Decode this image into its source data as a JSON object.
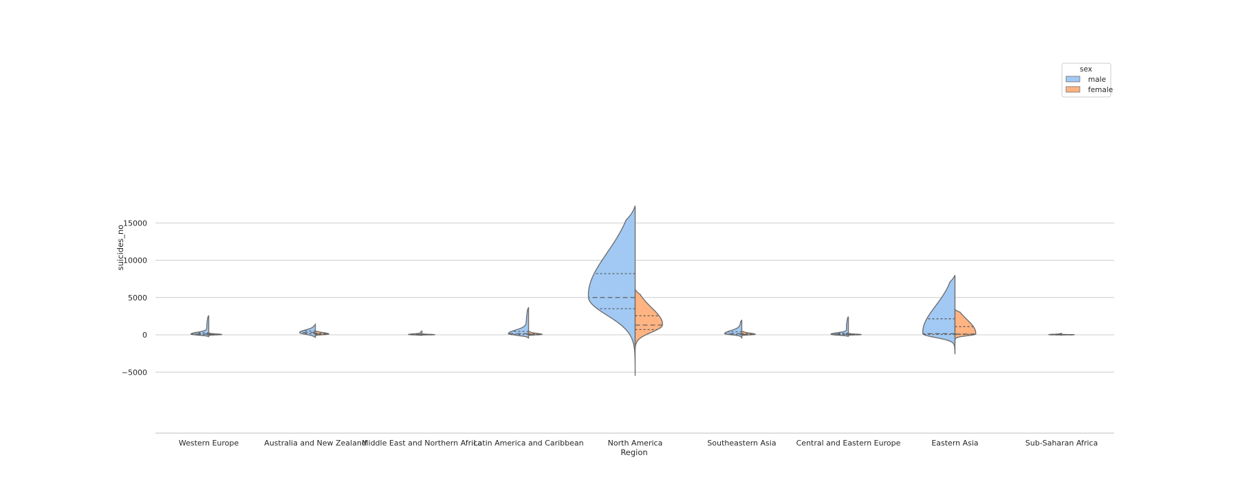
{
  "chart_data": {
    "type": "violin",
    "title": "",
    "xlabel": "Region",
    "ylabel": "suicides_no",
    "ylim": [
      -6500,
      17500
    ],
    "yticks": [
      -5000,
      0,
      5000,
      10000,
      15000
    ],
    "ytick_labels": [
      "−5000",
      "0",
      "5000",
      "10000",
      "15000"
    ],
    "grid": true,
    "split": true,
    "inner": "quartile",
    "categories": [
      "Western Europe",
      "Australia and New Zealand",
      "Middle East and Northern Africa",
      "Latin America and Caribbean",
      "North America",
      "Southeastern Asia",
      "Central and Eastern Europe",
      "Eastern Asia",
      "Sub-Saharan Africa"
    ],
    "legend": {
      "title": "sex",
      "position": "upper-right"
    },
    "series": [
      {
        "name": "male",
        "color": "#a1c9f4",
        "violins": [
          {
            "min": -300,
            "max": 2600,
            "q1": 20,
            "median": 100,
            "q3": 250
          },
          {
            "min": -400,
            "max": 1400,
            "q1": 150,
            "median": 300,
            "q3": 500
          },
          {
            "min": -100,
            "max": 500,
            "q1": 10,
            "median": 40,
            "q3": 90
          },
          {
            "min": -500,
            "max": 3700,
            "q1": 50,
            "median": 150,
            "q3": 450
          },
          {
            "min": -5500,
            "max": 17300,
            "q1": 3500,
            "median": 5000,
            "q3": 8200
          },
          {
            "min": -500,
            "max": 2000,
            "q1": 60,
            "median": 150,
            "q3": 400
          },
          {
            "min": -250,
            "max": 2450,
            "q1": 20,
            "median": 80,
            "q3": 200
          },
          {
            "min": -2600,
            "max": 8000,
            "q1": 50,
            "median": 150,
            "q3": 2150
          },
          {
            "min": -50,
            "max": 200,
            "q1": 5,
            "median": 20,
            "q3": 50
          }
        ]
      },
      {
        "name": "female",
        "color": "#ffb482",
        "violins": [
          {
            "min": -100,
            "max": 250,
            "q1": 10,
            "median": 40,
            "q3": 80
          },
          {
            "min": -100,
            "max": 500,
            "q1": 50,
            "median": 100,
            "q3": 200
          },
          {
            "min": -30,
            "max": 120,
            "q1": 5,
            "median": 15,
            "q3": 40
          },
          {
            "min": -100,
            "max": 500,
            "q1": 15,
            "median": 50,
            "q3": 130
          },
          {
            "min": -1900,
            "max": 6100,
            "q1": 700,
            "median": 1300,
            "q3": 2550
          },
          {
            "min": -100,
            "max": 500,
            "q1": 20,
            "median": 60,
            "q3": 150
          },
          {
            "min": -60,
            "max": 200,
            "q1": 5,
            "median": 25,
            "q3": 60
          },
          {
            "min": -1100,
            "max": 3400,
            "q1": 50,
            "median": 100,
            "q3": 1100
          },
          {
            "min": -20,
            "max": 60,
            "q1": 2,
            "median": 8,
            "q3": 20
          }
        ]
      }
    ]
  }
}
